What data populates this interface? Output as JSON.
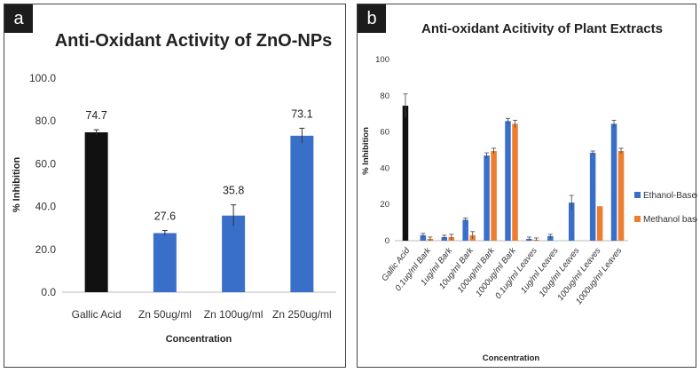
{
  "chart_data": [
    {
      "panel": "a",
      "type": "bar",
      "title": "Anti-Oxidant Activity of ZnO-NPs",
      "xlabel": "Concentration",
      "ylabel": "% Inhibition",
      "ylim": [
        0,
        100
      ],
      "yticks": [
        "0.0",
        "20.0",
        "40.0",
        "60.0",
        "80.0",
        "100.0"
      ],
      "categories": [
        "Gallic Acid",
        "Zn 50ug/ml",
        "Zn 100ug/ml",
        "Zn 250ug/ml"
      ],
      "values": [
        74.7,
        27.6,
        35.8,
        73.1
      ],
      "value_labels": [
        "74.7",
        "27.6",
        "35.8",
        "73.1"
      ],
      "errors": [
        1.2,
        1.2,
        5.0,
        3.5
      ],
      "colors": [
        "#111111",
        "#3a6fc9",
        "#3a6fc9",
        "#3a6fc9"
      ]
    },
    {
      "panel": "b",
      "type": "bar",
      "title": "Anti-oxidant Acitivity of Plant Extracts",
      "xlabel": "Concentration",
      "ylabel": "% Inhibition",
      "ylim": [
        0,
        100
      ],
      "yticks": [
        "0",
        "20",
        "40",
        "60",
        "80",
        "100"
      ],
      "legend_position": "right",
      "categories": [
        "Gallic Acid",
        "0.1ug/ml Bark",
        "1ug/ml Bark",
        "10ug/ml Bark",
        "100ug/ml Bark",
        "1000ug/ml Bark",
        "0.1ug/ml Leaves",
        "1ug/ml Leaves",
        "10ug/ml Leaves",
        "100ug/ml Leaves",
        "1000ug/ml Leaves"
      ],
      "gallic": {
        "value": 74.5,
        "error": 6.5,
        "color": "#111111"
      },
      "series": [
        {
          "name": "Ethanol-Based",
          "color": "#3a6fc9",
          "values": [
            null,
            3,
            2,
            11.5,
            47,
            66,
            1,
            2.5,
            21,
            48.5,
            64.5
          ],
          "errors": [
            null,
            1,
            1,
            1,
            1.5,
            1.5,
            1,
            1,
            4,
            1,
            2
          ]
        },
        {
          "name": "Methanol based",
          "color": "#ed7d31",
          "values": [
            null,
            1,
            2,
            3,
            49.5,
            64.5,
            0.5,
            0,
            0,
            19,
            49.5
          ],
          "errors": [
            null,
            1,
            1.5,
            2,
            1.5,
            2,
            1,
            0,
            0,
            0,
            1.5
          ]
        }
      ]
    }
  ],
  "panels": {
    "a_label": "a",
    "b_label": "b"
  }
}
